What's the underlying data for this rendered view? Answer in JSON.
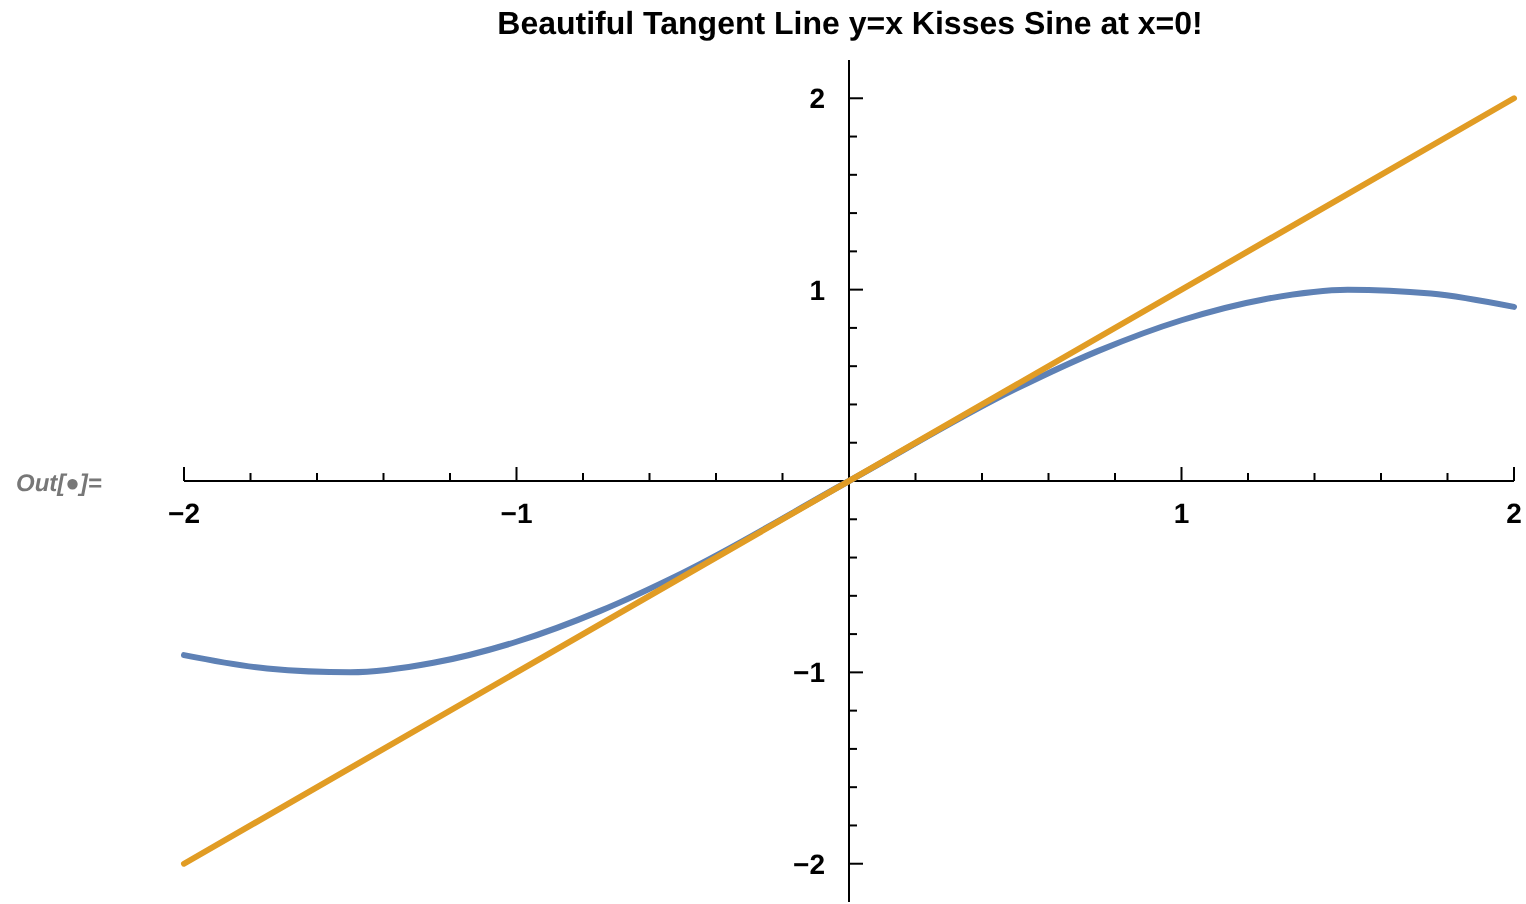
{
  "chart_data": {
    "type": "line",
    "title": "Beautiful Tangent Line y=x Kisses Sine at x=0!",
    "annotations": [
      "Out[●]="
    ],
    "xlim": [
      -2,
      2
    ],
    "ylim": [
      -2.2,
      2.2
    ],
    "xticks": [
      {
        "value": -2,
        "label": "−2"
      },
      {
        "value": -1.8,
        "label": null
      },
      {
        "value": -1.6,
        "label": null
      },
      {
        "value": -1.4,
        "label": null
      },
      {
        "value": -1.2,
        "label": null
      },
      {
        "value": -1,
        "label": "−1"
      },
      {
        "value": -0.8,
        "label": null
      },
      {
        "value": -0.6,
        "label": null
      },
      {
        "value": -0.4,
        "label": null
      },
      {
        "value": -0.2,
        "label": null
      },
      {
        "value": 0.2,
        "label": null
      },
      {
        "value": 0.4,
        "label": null
      },
      {
        "value": 0.6,
        "label": null
      },
      {
        "value": 0.8,
        "label": null
      },
      {
        "value": 1,
        "label": "1"
      },
      {
        "value": 1.2,
        "label": null
      },
      {
        "value": 1.4,
        "label": null
      },
      {
        "value": 1.6,
        "label": null
      },
      {
        "value": 1.8,
        "label": null
      },
      {
        "value": 2,
        "label": "2"
      }
    ],
    "yticks": [
      {
        "value": -2,
        "label": "−2"
      },
      {
        "value": -1.8,
        "label": null
      },
      {
        "value": -1.6,
        "label": null
      },
      {
        "value": -1.4,
        "label": null
      },
      {
        "value": -1.2,
        "label": null
      },
      {
        "value": -1,
        "label": "−1"
      },
      {
        "value": -0.8,
        "label": null
      },
      {
        "value": -0.6,
        "label": null
      },
      {
        "value": -0.4,
        "label": null
      },
      {
        "value": -0.2,
        "label": null
      },
      {
        "value": 0.2,
        "label": null
      },
      {
        "value": 0.4,
        "label": null
      },
      {
        "value": 0.6,
        "label": null
      },
      {
        "value": 0.8,
        "label": null
      },
      {
        "value": 1,
        "label": "1"
      },
      {
        "value": 1.2,
        "label": null
      },
      {
        "value": 1.4,
        "label": null
      },
      {
        "value": 1.6,
        "label": null
      },
      {
        "value": 1.8,
        "label": null
      },
      {
        "value": 2,
        "label": "2"
      }
    ],
    "series": [
      {
        "color": "#5e81b5",
        "x": [
          -2,
          -1.75,
          -1.5,
          -1.25,
          -1,
          -0.75,
          -0.5,
          -0.25,
          0,
          0.25,
          0.5,
          0.75,
          1,
          1.25,
          1.5,
          1.75,
          2
        ],
        "values": [
          -0.91,
          -0.98,
          -1.0,
          -0.95,
          -0.84,
          -0.68,
          -0.48,
          null,
          0,
          null,
          0.48,
          0.68,
          0.84,
          0.95,
          1.0,
          0.98,
          0.91
        ]
      },
      {
        "color": "#e19c24",
        "x": [
          -2,
          2
        ],
        "values": [
          -2,
          2
        ]
      }
    ]
  }
}
